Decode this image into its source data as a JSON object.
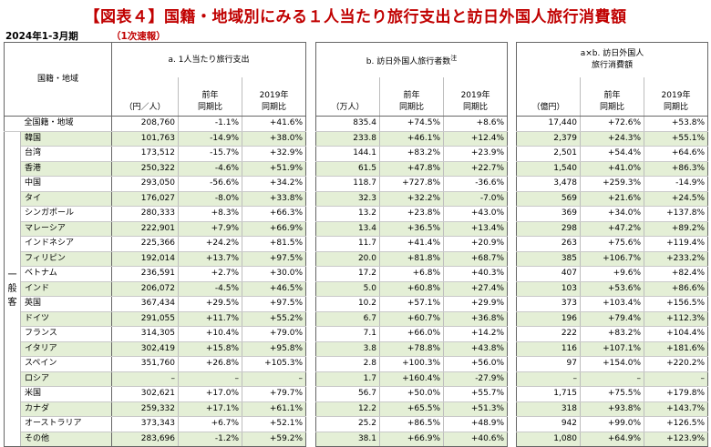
{
  "title": "【図表４】国籍・地域別にみる１人当たり旅行支出と訪日外国人旅行消費額",
  "period": "2024年1-3月期",
  "flash_label": "（1次速報）",
  "header": {
    "region": "国籍・地域",
    "general_label": "一般客",
    "a": {
      "title": "a. 1人当たり旅行支出",
      "unit": "（円／人）",
      "yoy": "前年\n同期比",
      "vs2019": "2019年\n同期比"
    },
    "b": {
      "title": "b. 訪日外国人旅行者数",
      "note": "注",
      "unit": "（万人）",
      "yoy": "前年\n同期比",
      "vs2019": "2019年\n同期比"
    },
    "c": {
      "title": "a×b. 訪日外国人\n旅行消費額",
      "unit": "（億円）",
      "yoy": "前年\n同期比",
      "vs2019": "2019年\n同期比"
    }
  },
  "rows": [
    {
      "name": "全国籍・地域",
      "a": "208,760",
      "a_yoy": "-1.1%",
      "a_19": "+41.6%",
      "b": "835.4",
      "b_yoy": "+74.5%",
      "b_19": "+8.6%",
      "c": "17,440",
      "c_yoy": "+72.6%",
      "c_19": "+53.8%"
    },
    {
      "name": "韓国",
      "a": "101,763",
      "a_yoy": "-14.9%",
      "a_19": "+38.0%",
      "b": "233.8",
      "b_yoy": "+46.1%",
      "b_19": "+12.4%",
      "c": "2,379",
      "c_yoy": "+24.3%",
      "c_19": "+55.1%"
    },
    {
      "name": "台湾",
      "a": "173,512",
      "a_yoy": "-15.7%",
      "a_19": "+32.9%",
      "b": "144.1",
      "b_yoy": "+83.2%",
      "b_19": "+23.9%",
      "c": "2,501",
      "c_yoy": "+54.4%",
      "c_19": "+64.6%"
    },
    {
      "name": "香港",
      "a": "250,322",
      "a_yoy": "-4.6%",
      "a_19": "+51.9%",
      "b": "61.5",
      "b_yoy": "+47.8%",
      "b_19": "+22.7%",
      "c": "1,540",
      "c_yoy": "+41.0%",
      "c_19": "+86.3%"
    },
    {
      "name": "中国",
      "a": "293,050",
      "a_yoy": "-56.6%",
      "a_19": "+34.2%",
      "b": "118.7",
      "b_yoy": "+727.8%",
      "b_19": "-36.6%",
      "c": "3,478",
      "c_yoy": "+259.3%",
      "c_19": "-14.9%"
    },
    {
      "name": "タイ",
      "a": "176,027",
      "a_yoy": "-8.0%",
      "a_19": "+33.8%",
      "b": "32.3",
      "b_yoy": "+32.2%",
      "b_19": "-7.0%",
      "c": "569",
      "c_yoy": "+21.6%",
      "c_19": "+24.5%"
    },
    {
      "name": "シンガポール",
      "a": "280,333",
      "a_yoy": "+8.3%",
      "a_19": "+66.3%",
      "b": "13.2",
      "b_yoy": "+23.8%",
      "b_19": "+43.0%",
      "c": "369",
      "c_yoy": "+34.0%",
      "c_19": "+137.8%"
    },
    {
      "name": "マレーシア",
      "a": "222,901",
      "a_yoy": "+7.9%",
      "a_19": "+66.9%",
      "b": "13.4",
      "b_yoy": "+36.5%",
      "b_19": "+13.4%",
      "c": "298",
      "c_yoy": "+47.2%",
      "c_19": "+89.2%"
    },
    {
      "name": "インドネシア",
      "a": "225,366",
      "a_yoy": "+24.2%",
      "a_19": "+81.5%",
      "b": "11.7",
      "b_yoy": "+41.4%",
      "b_19": "+20.9%",
      "c": "263",
      "c_yoy": "+75.6%",
      "c_19": "+119.4%"
    },
    {
      "name": "フィリピン",
      "a": "192,014",
      "a_yoy": "+13.7%",
      "a_19": "+97.5%",
      "b": "20.0",
      "b_yoy": "+81.8%",
      "b_19": "+68.7%",
      "c": "385",
      "c_yoy": "+106.7%",
      "c_19": "+233.2%"
    },
    {
      "name": "ベトナム",
      "a": "236,591",
      "a_yoy": "+2.7%",
      "a_19": "+30.0%",
      "b": "17.2",
      "b_yoy": "+6.8%",
      "b_19": "+40.3%",
      "c": "407",
      "c_yoy": "+9.6%",
      "c_19": "+82.4%"
    },
    {
      "name": "インド",
      "a": "206,072",
      "a_yoy": "-4.5%",
      "a_19": "+46.5%",
      "b": "5.0",
      "b_yoy": "+60.8%",
      "b_19": "+27.4%",
      "c": "103",
      "c_yoy": "+53.6%",
      "c_19": "+86.6%"
    },
    {
      "name": "英国",
      "a": "367,434",
      "a_yoy": "+29.5%",
      "a_19": "+97.5%",
      "b": "10.2",
      "b_yoy": "+57.1%",
      "b_19": "+29.9%",
      "c": "373",
      "c_yoy": "+103.4%",
      "c_19": "+156.5%"
    },
    {
      "name": "ドイツ",
      "a": "291,055",
      "a_yoy": "+11.7%",
      "a_19": "+55.2%",
      "b": "6.7",
      "b_yoy": "+60.7%",
      "b_19": "+36.8%",
      "c": "196",
      "c_yoy": "+79.4%",
      "c_19": "+112.3%"
    },
    {
      "name": "フランス",
      "a": "314,305",
      "a_yoy": "+10.4%",
      "a_19": "+79.0%",
      "b": "7.1",
      "b_yoy": "+66.0%",
      "b_19": "+14.2%",
      "c": "222",
      "c_yoy": "+83.2%",
      "c_19": "+104.4%"
    },
    {
      "name": "イタリア",
      "a": "302,419",
      "a_yoy": "+15.8%",
      "a_19": "+95.8%",
      "b": "3.8",
      "b_yoy": "+78.8%",
      "b_19": "+43.8%",
      "c": "116",
      "c_yoy": "+107.1%",
      "c_19": "+181.6%"
    },
    {
      "name": "スペイン",
      "a": "351,760",
      "a_yoy": "+26.8%",
      "a_19": "+105.3%",
      "b": "2.8",
      "b_yoy": "+100.3%",
      "b_19": "+56.0%",
      "c": "97",
      "c_yoy": "+154.0%",
      "c_19": "+220.2%"
    },
    {
      "name": "ロシア",
      "a": "–",
      "a_yoy": "–",
      "a_19": "–",
      "b": "1.7",
      "b_yoy": "+160.4%",
      "b_19": "-27.9%",
      "c": "–",
      "c_yoy": "–",
      "c_19": "–"
    },
    {
      "name": "米国",
      "a": "302,621",
      "a_yoy": "+17.0%",
      "a_19": "+79.7%",
      "b": "56.7",
      "b_yoy": "+50.0%",
      "b_19": "+55.7%",
      "c": "1,715",
      "c_yoy": "+75.5%",
      "c_19": "+179.8%"
    },
    {
      "name": "カナダ",
      "a": "259,332",
      "a_yoy": "+17.1%",
      "a_19": "+61.1%",
      "b": "12.2",
      "b_yoy": "+65.5%",
      "b_19": "+51.3%",
      "c": "318",
      "c_yoy": "+93.8%",
      "c_19": "+143.7%"
    },
    {
      "name": "オーストラリア",
      "a": "373,343",
      "a_yoy": "+6.7%",
      "a_19": "+52.1%",
      "b": "25.2",
      "b_yoy": "+86.5%",
      "b_19": "+48.9%",
      "c": "942",
      "c_yoy": "+99.0%",
      "c_19": "+126.5%"
    },
    {
      "name": "その他",
      "a": "283,696",
      "a_yoy": "-1.2%",
      "a_19": "+59.2%",
      "b": "38.1",
      "b_yoy": "+66.9%",
      "b_19": "+40.6%",
      "c": "1,080",
      "c_yoy": "+64.9%",
      "c_19": "+123.9%"
    }
  ]
}
